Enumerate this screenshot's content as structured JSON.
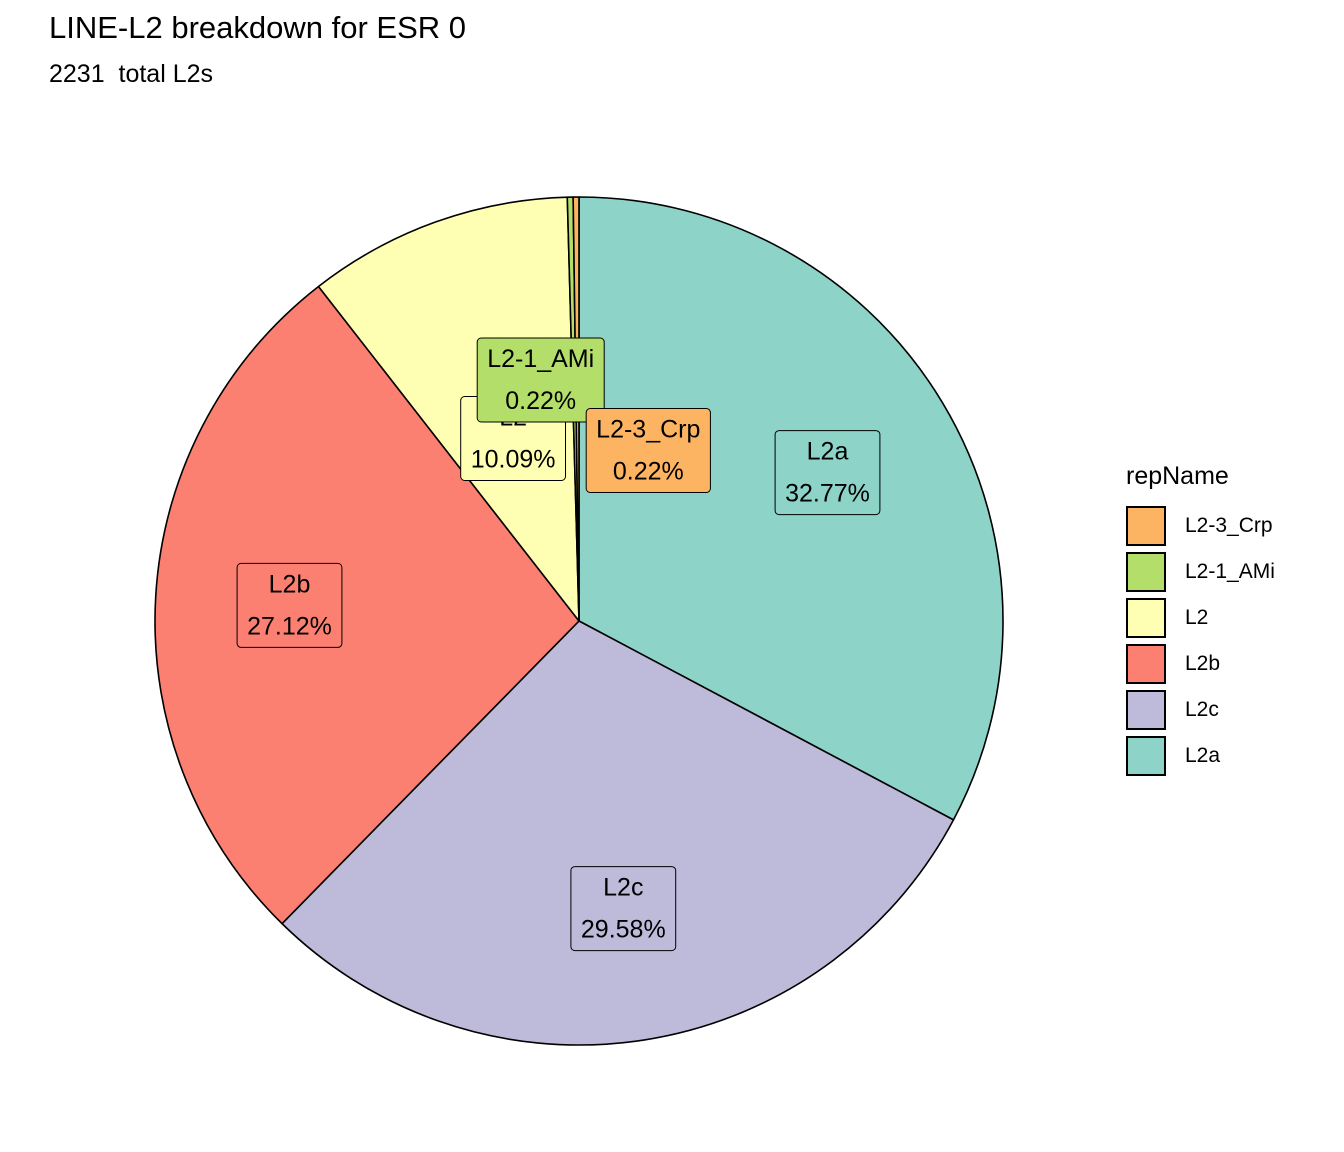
{
  "title": "LINE-L2 breakdown for ESR 0",
  "subtitle": "2231  total L2s",
  "legend": {
    "title": "repName",
    "items": [
      {
        "label": "L2-3_Crp",
        "color": "#FDB462"
      },
      {
        "label": "L2-1_AMi",
        "color": "#B3DE69"
      },
      {
        "label": "L2",
        "color": "#FFFFB3"
      },
      {
        "label": "L2b",
        "color": "#FB8072"
      },
      {
        "label": "L2c",
        "color": "#BEBADA"
      },
      {
        "label": "L2a",
        "color": "#8DD3C7"
      }
    ]
  },
  "chart_data": {
    "type": "pie",
    "title": "LINE-L2 breakdown for ESR 0",
    "subtitle": "2231  total L2s",
    "legend_title": "repName",
    "legend_position": "right",
    "slices": [
      {
        "name": "L2a",
        "value": 32.77,
        "label": "32.77%",
        "color": "#8DD3C7"
      },
      {
        "name": "L2c",
        "value": 29.58,
        "label": "29.58%",
        "color": "#BEBADA"
      },
      {
        "name": "L2b",
        "value": 27.12,
        "label": "27.12%",
        "color": "#FB8072"
      },
      {
        "name": "L2",
        "value": 10.09,
        "label": "10.09%",
        "color": "#FFFFB3"
      },
      {
        "name": "L2-1_AMi",
        "value": 0.22,
        "label": "0.22%",
        "color": "#B3DE69"
      },
      {
        "name": "L2-3_Crp",
        "value": 0.22,
        "label": "0.22%",
        "color": "#FDB462"
      }
    ]
  }
}
